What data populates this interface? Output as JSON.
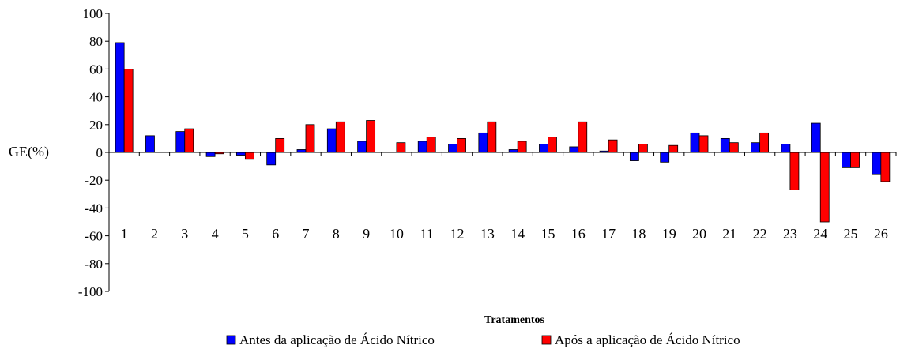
{
  "chart_data": {
    "type": "bar",
    "categories": [
      "1",
      "2",
      "3",
      "4",
      "5",
      "6",
      "7",
      "8",
      "9",
      "10",
      "11",
      "12",
      "13",
      "14",
      "15",
      "16",
      "17",
      "18",
      "19",
      "20",
      "21",
      "22",
      "23",
      "24",
      "25",
      "26"
    ],
    "series": [
      {
        "name": "Antes da aplicação de Ácido Nítrico",
        "color": "#0000ff",
        "values": [
          79,
          12,
          15,
          -3,
          -2,
          -9,
          2,
          17,
          8,
          0,
          8,
          6,
          14,
          2,
          6,
          4,
          1,
          -6,
          -7,
          14,
          10,
          7,
          6,
          21,
          -11,
          -16
        ]
      },
      {
        "name": "Após a aplicação de Ácido Nítrico",
        "color": "#ff0000",
        "values": [
          60,
          0,
          17,
          -1,
          -5,
          10,
          20,
          22,
          23,
          7,
          11,
          10,
          22,
          8,
          11,
          22,
          9,
          6,
          5,
          12,
          7,
          14,
          -27,
          -50,
          -11,
          -21
        ]
      }
    ],
    "title": "",
    "xlabel": "Tratamentos",
    "ylabel": "GE(%)",
    "ylim": [
      -100,
      100
    ],
    "yticks": [
      "100",
      "80",
      "60",
      "40",
      "20",
      "0",
      "-20",
      "-40",
      "-60",
      "-80",
      "-100"
    ],
    "legend_position": "bottom",
    "grid": false
  }
}
